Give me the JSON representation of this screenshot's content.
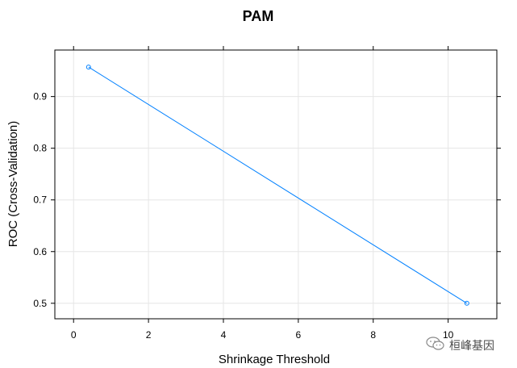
{
  "chart_data": {
    "type": "line",
    "title": "PAM",
    "xlabel": "Shrinkage Threshold",
    "ylabel": "ROC (Cross-Validation)",
    "xlim": [
      -0.5,
      11.3
    ],
    "ylim": [
      0.47,
      0.99
    ],
    "xticks": [
      0,
      2,
      4,
      6,
      8,
      10
    ],
    "yticks": [
      0.5,
      0.6,
      0.7,
      0.8,
      0.9
    ],
    "grid": true,
    "series": [
      {
        "x": [
          0.4,
          10.5
        ],
        "y": [
          0.957,
          0.5
        ],
        "color": "#0080ff",
        "marker": "open-circle"
      }
    ]
  },
  "watermark": {
    "text": "桓峰基因",
    "icon": "wechat-icon"
  }
}
